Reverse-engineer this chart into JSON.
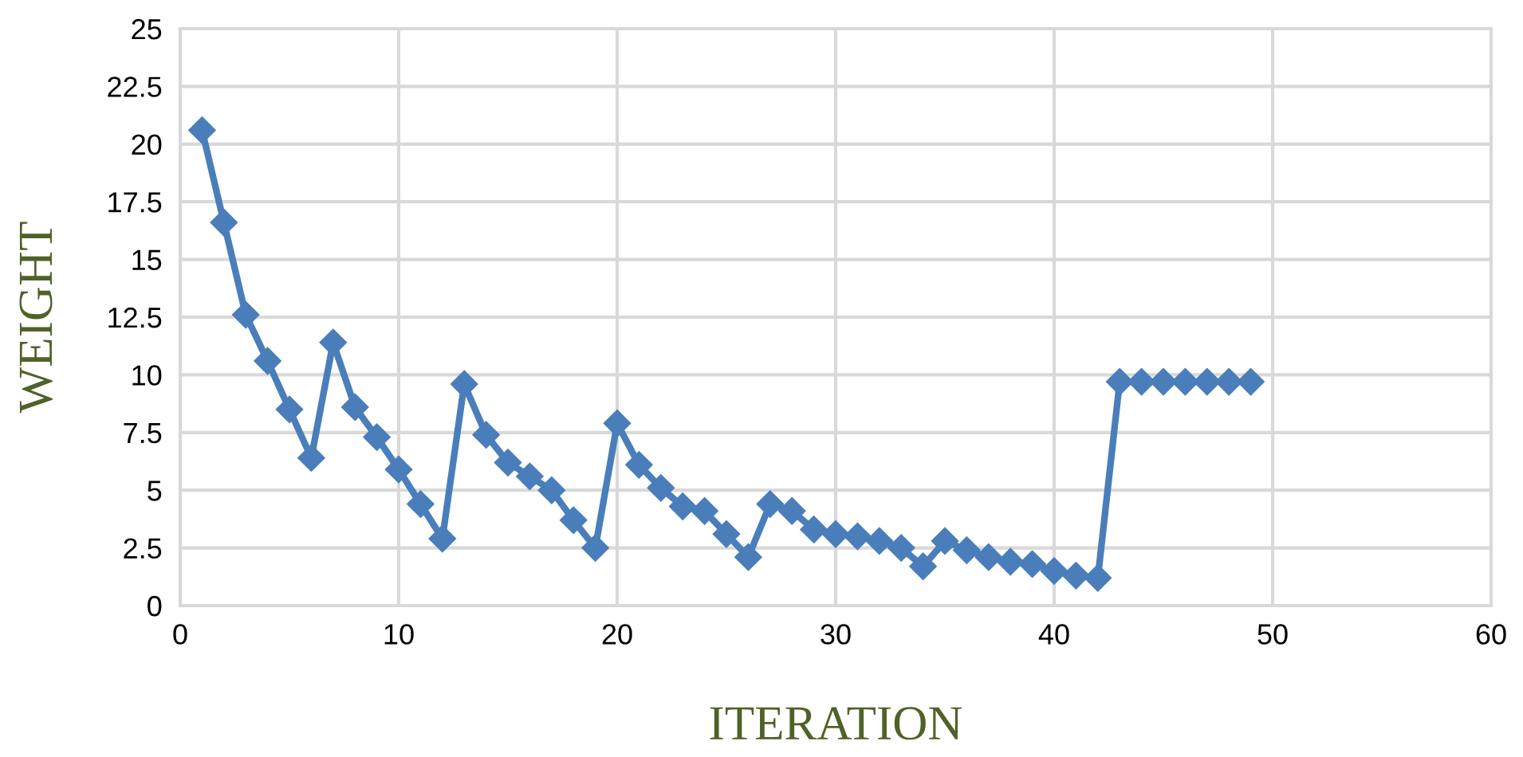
{
  "chart_data": {
    "type": "line",
    "xlabel": "ITERATION",
    "ylabel": "WEIGHT",
    "x": [
      1,
      2,
      3,
      4,
      5,
      6,
      7,
      8,
      9,
      10,
      11,
      12,
      13,
      14,
      15,
      16,
      17,
      18,
      19,
      20,
      21,
      22,
      23,
      24,
      25,
      26,
      27,
      28,
      29,
      30,
      31,
      32,
      33,
      34,
      35,
      36,
      37,
      38,
      39,
      40,
      41,
      42,
      43,
      44,
      45,
      46,
      47,
      48,
      49
    ],
    "series": [
      {
        "color": "#4a7ebb",
        "values": [
          20.6,
          16.6,
          12.6,
          10.6,
          8.5,
          6.4,
          11.4,
          8.6,
          7.3,
          5.9,
          4.4,
          2.9,
          9.6,
          7.4,
          6.2,
          5.6,
          5.0,
          3.7,
          2.5,
          7.9,
          6.1,
          5.1,
          4.3,
          4.1,
          3.1,
          2.1,
          4.4,
          4.1,
          3.3,
          3.1,
          3.0,
          2.8,
          2.5,
          1.7,
          2.8,
          2.4,
          2.1,
          1.9,
          1.8,
          1.5,
          1.3,
          1.2,
          9.7,
          9.7,
          9.7,
          9.7,
          9.7,
          9.7,
          9.7
        ]
      }
    ],
    "xlim": [
      0,
      60
    ],
    "xticks": [
      0,
      10,
      20,
      30,
      40,
      50,
      60
    ],
    "ylim": [
      0,
      25
    ],
    "yticks": [
      0,
      2.5,
      5,
      7.5,
      10,
      12.5,
      15,
      17.5,
      20,
      22.5,
      25
    ],
    "grid": true,
    "marker": "diamond",
    "line_style": "solid"
  }
}
